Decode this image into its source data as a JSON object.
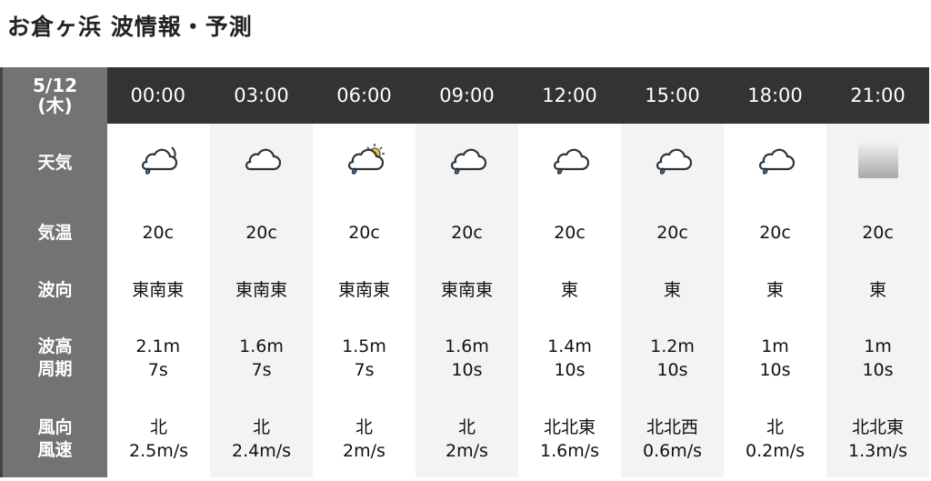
{
  "title": "お倉ヶ浜 波情報・予測",
  "date": "5/12",
  "weekday": "(木)",
  "labels": {
    "weather": "天気",
    "temp": "気温",
    "wave_dir": "波向",
    "wave_height": "波高",
    "period": "周期",
    "wind_dir": "風向",
    "wind_speed": "風速"
  },
  "columns": [
    {
      "time": "00:00",
      "weather": "cloudy-moon-rain-icon",
      "temp": "20c",
      "wave_dir": "東南東",
      "height": "2.1m",
      "period": "7s",
      "wind_dir": "北",
      "wind_speed": "2.5m/s"
    },
    {
      "time": "03:00",
      "weather": "cloudy-icon",
      "temp": "20c",
      "wave_dir": "東南東",
      "height": "1.6m",
      "period": "7s",
      "wind_dir": "北",
      "wind_speed": "2.4m/s"
    },
    {
      "time": "06:00",
      "weather": "cloudy-sun-rain-icon",
      "temp": "20c",
      "wave_dir": "東南東",
      "height": "1.5m",
      "period": "7s",
      "wind_dir": "北",
      "wind_speed": "2m/s"
    },
    {
      "time": "09:00",
      "weather": "cloudy-rain-icon",
      "temp": "20c",
      "wave_dir": "東南東",
      "height": "1.6m",
      "period": "10s",
      "wind_dir": "北",
      "wind_speed": "2m/s"
    },
    {
      "time": "12:00",
      "weather": "cloudy-rain-icon",
      "temp": "20c",
      "wave_dir": "東",
      "height": "1.4m",
      "period": "10s",
      "wind_dir": "北北東",
      "wind_speed": "1.6m/s"
    },
    {
      "time": "15:00",
      "weather": "cloudy-rain-icon",
      "temp": "20c",
      "wave_dir": "東",
      "height": "1.2m",
      "period": "10s",
      "wind_dir": "北北西",
      "wind_speed": "0.6m/s"
    },
    {
      "time": "18:00",
      "weather": "cloudy-rain-icon",
      "temp": "20c",
      "wave_dir": "東",
      "height": "1m",
      "period": "10s",
      "wind_dir": "北",
      "wind_speed": "0.2m/s"
    },
    {
      "time": "21:00",
      "weather": "no-data-icon",
      "temp": "20c",
      "wave_dir": "東",
      "height": "1m",
      "period": "10s",
      "wind_dir": "北北東",
      "wind_speed": "1.3m/s"
    }
  ]
}
